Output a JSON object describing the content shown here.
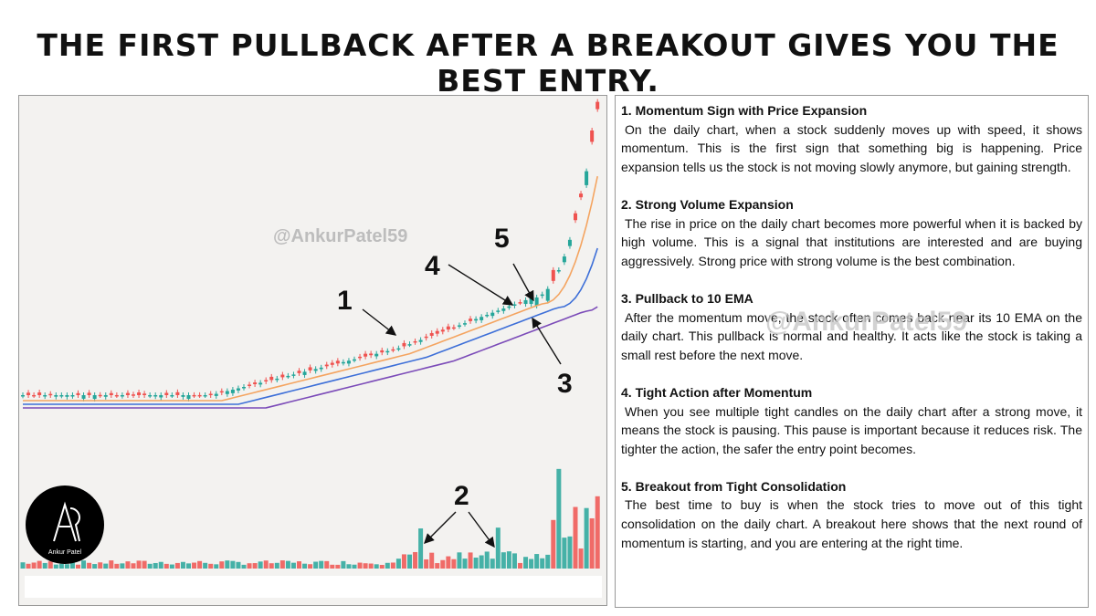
{
  "header": {
    "title": "THE FIRST PULLBACK AFTER A BREAKOUT GIVES YOU THE BEST ENTRY."
  },
  "chart_panel": {
    "watermark": "@AnkurPatel59",
    "labels": [
      "1",
      "2",
      "3",
      "4",
      "5"
    ],
    "logo_name": "Ankur Patel"
  },
  "text_panel": {
    "watermark": "@AnkurPatel59",
    "sections": [
      {
        "heading": "1. Momentum Sign with Price Expansion",
        "body": "On the daily chart, when a stock suddenly moves up with speed, it shows momentum. This is the first sign that something big is happening. Price expansion tells us the stock is not moving slowly anymore, but gaining strength."
      },
      {
        "heading": "2. Strong Volume Expansion",
        "body": "The rise in price on the daily chart becomes more powerful when it is backed by high volume. This is a signal that institutions are interested and are buying aggressively. Strong price with strong volume is the best combination."
      },
      {
        "heading": "3. Pullback to 10 EMA",
        "body": "After the momentum move, the stock often comes back near its 10 EMA on the daily chart. This pullback is normal and healthy. It acts like the stock is taking a small rest before the next move."
      },
      {
        "heading": "4. Tight Action after Momentum",
        "body": "When you see multiple tight candles on the daily chart after a strong move, it means the stock is pausing. This pause is important because it reduces risk. The tighter the action, the safer the entry point becomes."
      },
      {
        "heading": "5. Breakout from Tight Consolidation",
        "body": "The best time to buy is when the stock tries to move out of this tight consolidation on the daily chart. A breakout here shows that the next round of momentum is starting, and you are entering at the right time."
      }
    ]
  }
}
